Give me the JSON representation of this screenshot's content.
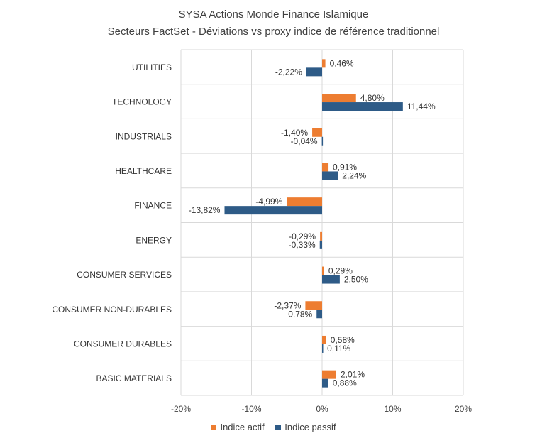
{
  "chart_data": {
    "type": "bar",
    "orientation": "horizontal",
    "title": "SYSA Actions Monde Finance Islamique",
    "subtitle": "Secteurs FactSet - Déviations vs proxy indice de référence traditionnel",
    "categories": [
      "UTILITIES",
      "TECHNOLOGY",
      "INDUSTRIALS",
      "HEALTHCARE",
      "FINANCE",
      "ENERGY",
      "CONSUMER SERVICES",
      "CONSUMER NON-DURABLES",
      "CONSUMER DURABLES",
      "BASIC MATERIALS"
    ],
    "series": [
      {
        "name": "Indice actif",
        "color": "#ed7d31",
        "values": [
          0.46,
          4.8,
          -1.4,
          0.91,
          -4.99,
          -0.29,
          0.29,
          -2.37,
          0.58,
          2.01
        ],
        "labels": [
          "0,46%",
          "4,80%",
          "-1,40%",
          "0,91%",
          "-4,99%",
          "-0,29%",
          "0,29%",
          "-2,37%",
          "0,58%",
          "2,01%"
        ]
      },
      {
        "name": "Indice passif",
        "color": "#2e5b87",
        "values": [
          -2.22,
          11.44,
          -0.04,
          2.24,
          -13.82,
          -0.33,
          2.5,
          -0.78,
          0.11,
          0.88
        ],
        "labels": [
          "-2,22%",
          "11,44%",
          "-0,04%",
          "2,24%",
          "-13,82%",
          "-0,33%",
          "2,50%",
          "-0,78%",
          "0,11%",
          "0,88%"
        ]
      }
    ],
    "xlim": [
      -20,
      20
    ],
    "xticks": [
      -20,
      -10,
      0,
      10,
      20
    ],
    "xtick_labels": [
      "-20%",
      "-10%",
      "0%",
      "10%",
      "20%"
    ],
    "grid": true,
    "legend_position": "bottom"
  }
}
